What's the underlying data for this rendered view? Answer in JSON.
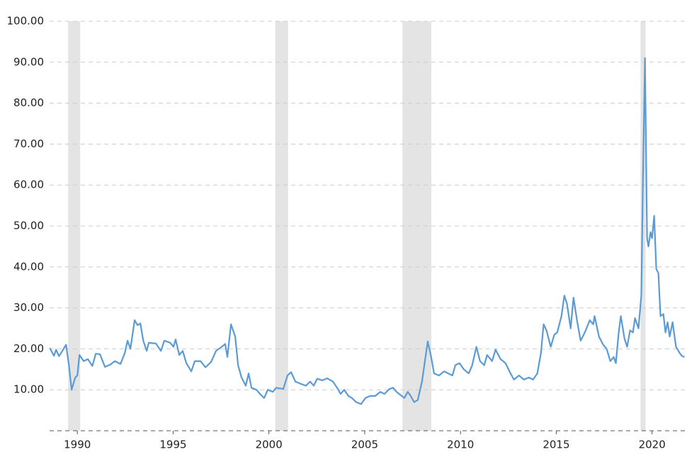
{
  "chart_data": {
    "type": "line",
    "color": "#5b9bd5",
    "grid": true,
    "xlim": [
      1988.55,
      2021.75
    ],
    "xticks": [
      1990,
      1995,
      2000,
      2005,
      2010,
      2015,
      2020
    ],
    "ylim": [
      0,
      100
    ],
    "yticks": [
      {
        "value": 10,
        "label": "10.00"
      },
      {
        "value": 20,
        "label": "20.00"
      },
      {
        "value": 30,
        "label": "30.00"
      },
      {
        "value": 40,
        "label": "40.00"
      },
      {
        "value": 50,
        "label": "50.00"
      },
      {
        "value": 60,
        "label": "60.00"
      },
      {
        "value": 70,
        "label": "70.00"
      },
      {
        "value": 80,
        "label": "80.00"
      },
      {
        "value": 90,
        "label": "90.00"
      },
      {
        "value": 100,
        "label": "100.00"
      }
    ],
    "recessions": [
      [
        1989.52,
        1990.15
      ],
      [
        2000.33,
        2001.0
      ],
      [
        2006.97,
        2008.48
      ],
      [
        2019.4,
        2019.66
      ]
    ],
    "x": [
      1988.56,
      1988.78,
      1988.89,
      1989.04,
      1989.19,
      1989.41,
      1989.56,
      1989.7,
      1989.89,
      1990.0,
      1990.11,
      1990.33,
      1990.55,
      1990.78,
      1990.96,
      1991.18,
      1991.44,
      1991.7,
      1991.96,
      1992.25,
      1992.48,
      1992.62,
      1992.77,
      1992.99,
      1993.14,
      1993.29,
      1993.44,
      1993.62,
      1993.73,
      1994.1,
      1994.36,
      1994.54,
      1994.84,
      1995.02,
      1995.13,
      1995.32,
      1995.5,
      1995.69,
      1995.95,
      1996.13,
      1996.43,
      1996.69,
      1996.98,
      1997.24,
      1997.54,
      1997.72,
      1997.83,
      1998.02,
      1998.24,
      1998.39,
      1998.57,
      1998.79,
      1998.94,
      1999.09,
      1999.35,
      1999.53,
      1999.75,
      1999.94,
      2000.2,
      2000.38,
      2000.75,
      2000.97,
      2001.16,
      2001.38,
      2001.64,
      2001.93,
      2002.15,
      2002.34,
      2002.52,
      2002.78,
      2003.04,
      2003.34,
      2003.56,
      2003.74,
      2003.93,
      2004.15,
      2004.33,
      2004.55,
      2004.81,
      2005.04,
      2005.29,
      2005.55,
      2005.81,
      2006.03,
      2006.29,
      2006.48,
      2006.66,
      2006.85,
      2007.07,
      2007.25,
      2007.4,
      2007.58,
      2007.77,
      2007.99,
      2008.29,
      2008.47,
      2008.62,
      2008.88,
      2009.14,
      2009.36,
      2009.58,
      2009.73,
      2009.95,
      2010.17,
      2010.43,
      2010.61,
      2010.83,
      2011.02,
      2011.24,
      2011.39,
      2011.65,
      2011.83,
      2012.09,
      2012.35,
      2012.61,
      2012.79,
      2013.05,
      2013.31,
      2013.57,
      2013.79,
      2014.01,
      2014.2,
      2014.34,
      2014.49,
      2014.71,
      2014.9,
      2015.05,
      2015.27,
      2015.42,
      2015.56,
      2015.75,
      2015.9,
      2016.08,
      2016.27,
      2016.49,
      2016.75,
      2016.93,
      2017.0,
      2017.23,
      2017.45,
      2017.63,
      2017.82,
      2018.0,
      2018.11,
      2018.26,
      2018.37,
      2018.56,
      2018.7,
      2018.85,
      2019.0,
      2019.11,
      2019.29,
      2019.44,
      2019.52,
      2019.63,
      2019.74,
      2019.81,
      2019.92,
      2020.0,
      2020.11,
      2020.22,
      2020.33,
      2020.44,
      2020.59,
      2020.7,
      2020.81,
      2020.92,
      2021.07,
      2021.25,
      2021.44,
      2021.55,
      2021.69
    ],
    "values": [
      20.2,
      18.3,
      19.8,
      18.2,
      19.3,
      21.0,
      16,
      10.0,
      13,
      13.5,
      18.5,
      17,
      17.5,
      15.8,
      18.8,
      18.7,
      15.6,
      16.1,
      17,
      16.3,
      19,
      22,
      20,
      27,
      25.8,
      26.2,
      22,
      19.5,
      21.5,
      21.3,
      19.5,
      22,
      21.5,
      20.5,
      22.3,
      18.5,
      19.5,
      16.5,
      14.5,
      17,
      17,
      15.5,
      16.8,
      19.5,
      20.5,
      21.2,
      18,
      26,
      23,
      16,
      13,
      11,
      14,
      10.5,
      10,
      9,
      8,
      10,
      9.5,
      10.5,
      10.2,
      13.5,
      14.3,
      12,
      11.5,
      11,
      12,
      11,
      12.7,
      12.3,
      12.8,
      12,
      10.5,
      9,
      10,
      8.5,
      8,
      7,
      6.5,
      8,
      8.5,
      8.5,
      9.5,
      9,
      10.2,
      10.5,
      9.5,
      8.8,
      8,
      9.5,
      8.5,
      7,
      7.5,
      12,
      21.8,
      18,
      14,
      13.5,
      14.5,
      14,
      13.5,
      16,
      16.5,
      15,
      14,
      16,
      20.5,
      17,
      16,
      18.5,
      17,
      19.8,
      17.5,
      16.5,
      14,
      12.5,
      13.5,
      12.5,
      13,
      12.5,
      14,
      19,
      26,
      24.5,
      20.5,
      23.5,
      24,
      28,
      33,
      31,
      25,
      32.5,
      27,
      22,
      24,
      27,
      26,
      28,
      23,
      21,
      20,
      17,
      18,
      16.5,
      24,
      28,
      22.5,
      20.5,
      24.5,
      24,
      27.5,
      25,
      33,
      60,
      91,
      47,
      45,
      48.5,
      47,
      52.5,
      39.5,
      38.5,
      28,
      28.5,
      24,
      26.5,
      23,
      26.5,
      20.5,
      19,
      18.3,
      18
    ]
  }
}
